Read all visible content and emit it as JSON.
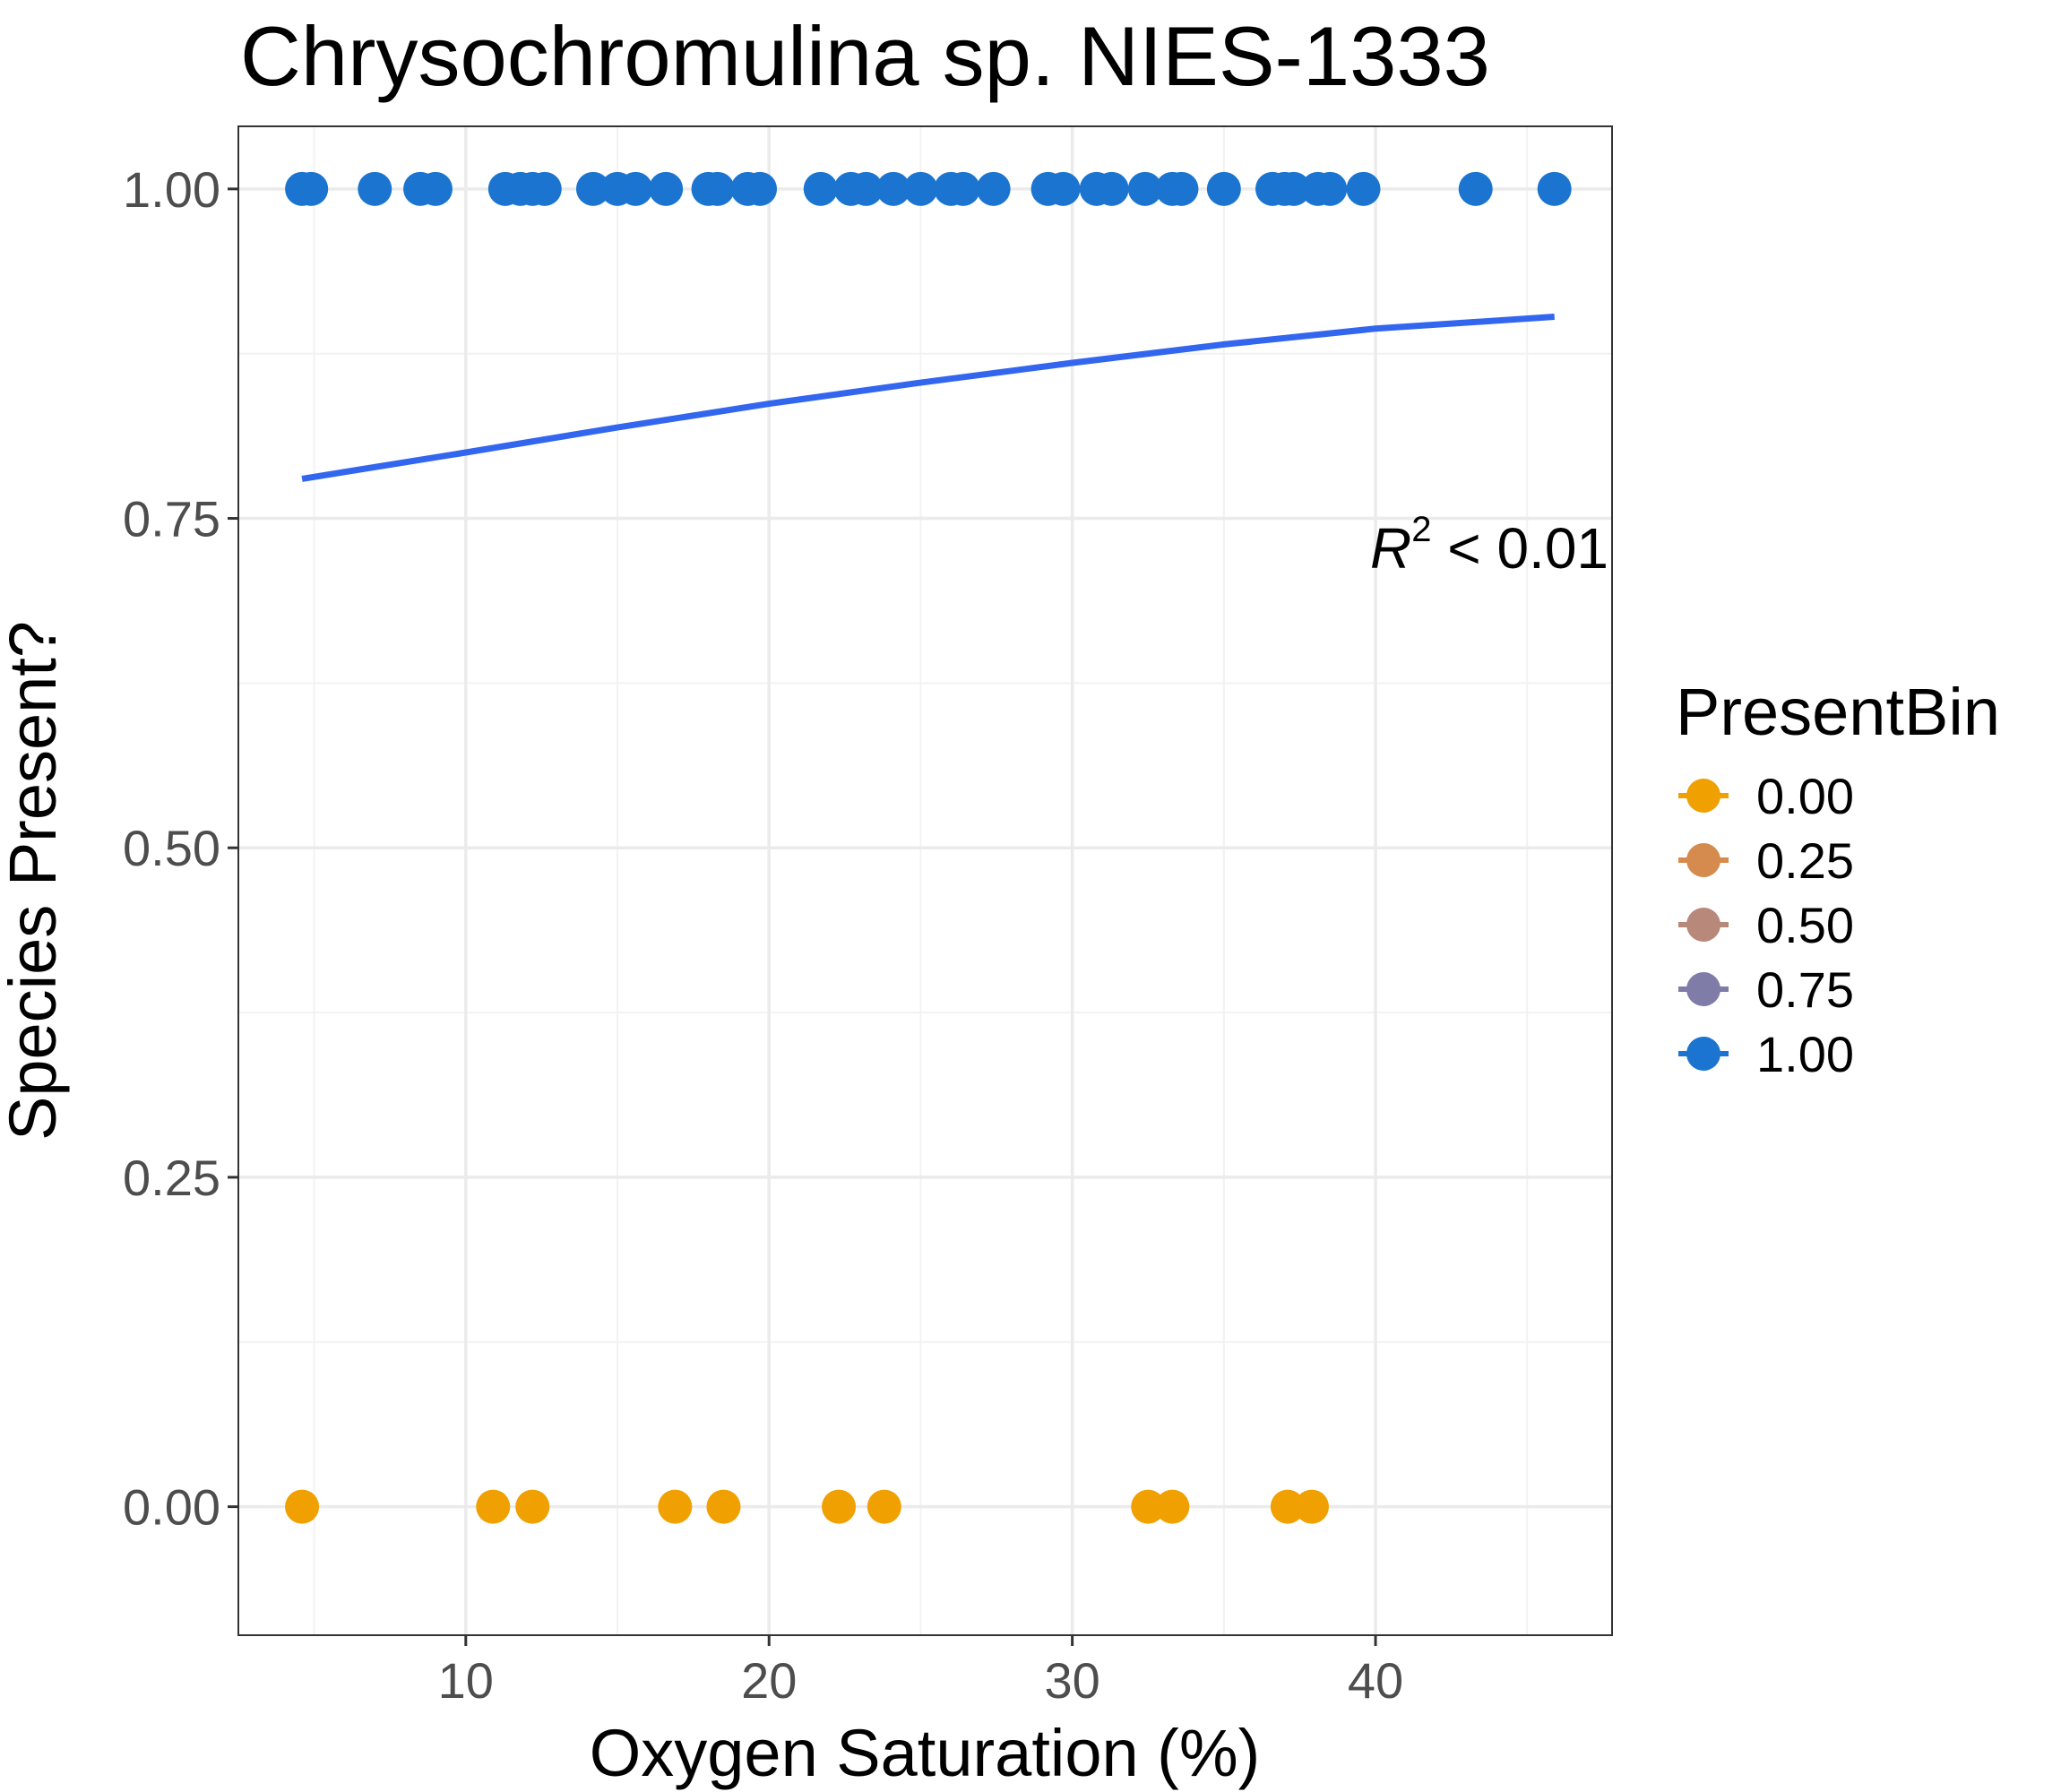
{
  "chart_data": {
    "type": "scatter",
    "title": "Chrysochromulina sp. NIES-1333",
    "xlabel": "Oxygen Saturation (%)",
    "ylabel": "Species Present?",
    "xlim": [
      2.5,
      47.8
    ],
    "ylim": [
      -0.0975,
      1.0475
    ],
    "x_ticks": [
      10,
      20,
      30,
      40
    ],
    "x_tick_labels": [
      "10",
      "20",
      "30",
      "40"
    ],
    "y_ticks": [
      0,
      0.25,
      0.5,
      0.75,
      1.0
    ],
    "y_tick_labels": [
      "0.00",
      "0.25",
      "0.50",
      "0.75",
      "1.00"
    ],
    "grid": true,
    "legend": {
      "title": "PresentBin",
      "placement": "right",
      "entries": [
        {
          "label": "0.00",
          "color": "#F0A000"
        },
        {
          "label": "0.25",
          "color": "#D48B4D"
        },
        {
          "label": "0.50",
          "color": "#B8897A"
        },
        {
          "label": "0.75",
          "color": "#7F7DA8"
        },
        {
          "label": "1.00",
          "color": "#1B75D0"
        }
      ]
    },
    "annotation": {
      "r_symbol": "R",
      "r_power": "2",
      "r_rest": " < 0.01"
    },
    "series": [
      {
        "name": "1.00",
        "color": "#1B75D0",
        "y": 1.0,
        "x": [
          4.6,
          4.9,
          7.0,
          8.5,
          9.0,
          11.3,
          11.8,
          12.2,
          12.6,
          14.2,
          15.0,
          15.6,
          16.6,
          18.0,
          18.3,
          19.3,
          19.7,
          21.7,
          22.7,
          23.2,
          24.1,
          25.0,
          26.0,
          26.4,
          27.4,
          29.2,
          29.7,
          30.8,
          31.3,
          32.4,
          33.3,
          33.6,
          35.0,
          36.6,
          37.0,
          37.3,
          38.1,
          38.5,
          39.6,
          43.3,
          45.9
        ]
      },
      {
        "name": "0.00",
        "color": "#F0A000",
        "y": 0.0,
        "x": [
          4.6,
          10.9,
          12.2,
          16.9,
          18.5,
          22.3,
          23.8,
          32.5,
          33.3,
          37.1,
          37.9
        ]
      }
    ],
    "fit_line": {
      "color": "#3366EE",
      "x": [
        4.6,
        10,
        15,
        20,
        25,
        30,
        35,
        40,
        45.9
      ],
      "y": [
        0.78,
        0.8,
        0.819,
        0.837,
        0.853,
        0.868,
        0.882,
        0.894,
        0.903
      ]
    }
  }
}
